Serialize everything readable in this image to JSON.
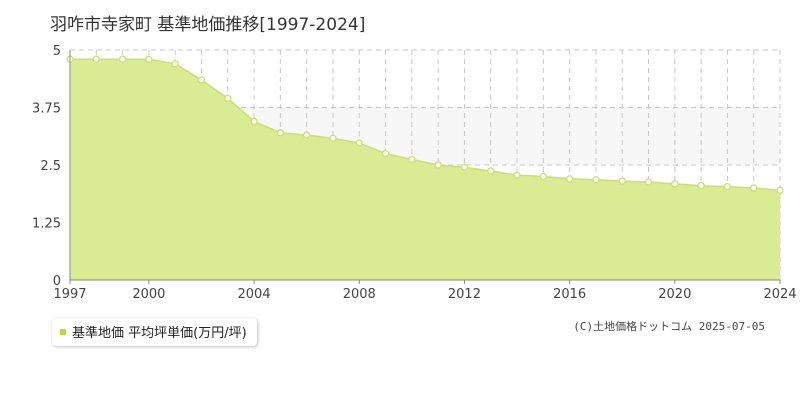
{
  "page": {
    "title": "羽咋市寺家町 基準地価推移[1997-2024]",
    "credit": "(C)土地価格ドットコム 2025-07-05"
  },
  "legend": {
    "label": "基準地価 平均坪単価(万円/坪)"
  },
  "colors": {
    "area_fill": "#d9eb93",
    "line": "#c9e26a",
    "grid": "#c8c8c8",
    "band": "#f7f7f7",
    "legend_swatch": "#bcdc3a"
  },
  "chart_data": {
    "type": "area",
    "x": [
      1997,
      1998,
      1999,
      2000,
      2001,
      2002,
      2003,
      2004,
      2005,
      2006,
      2007,
      2008,
      2009,
      2010,
      2011,
      2012,
      2013,
      2014,
      2015,
      2016,
      2017,
      2018,
      2019,
      2020,
      2021,
      2022,
      2023,
      2024
    ],
    "series": [
      {
        "name": "基準地価 平均坪単価(万円/坪)",
        "values": [
          4.8,
          4.8,
          4.8,
          4.8,
          4.7,
          4.35,
          3.95,
          3.45,
          3.2,
          3.15,
          3.08,
          2.98,
          2.75,
          2.62,
          2.5,
          2.45,
          2.37,
          2.28,
          2.25,
          2.2,
          2.18,
          2.15,
          2.13,
          2.09,
          2.05,
          2.03,
          2.0,
          1.95
        ]
      }
    ],
    "ylim": [
      0,
      5
    ],
    "yticks": [
      0,
      1.25,
      2.5,
      3.75,
      5
    ],
    "ytick_labels": [
      "0",
      "1.25",
      "2.5",
      "3.75",
      "5"
    ],
    "xlim": [
      1997,
      2024
    ],
    "xticks": [
      1997,
      2000,
      2004,
      2008,
      2012,
      2016,
      2020,
      2024
    ],
    "grid": true,
    "legend_position": "bottom-left",
    "title": "羽咋市寺家町 基準地価推移[1997-2024]",
    "xlabel": "",
    "ylabel": ""
  }
}
